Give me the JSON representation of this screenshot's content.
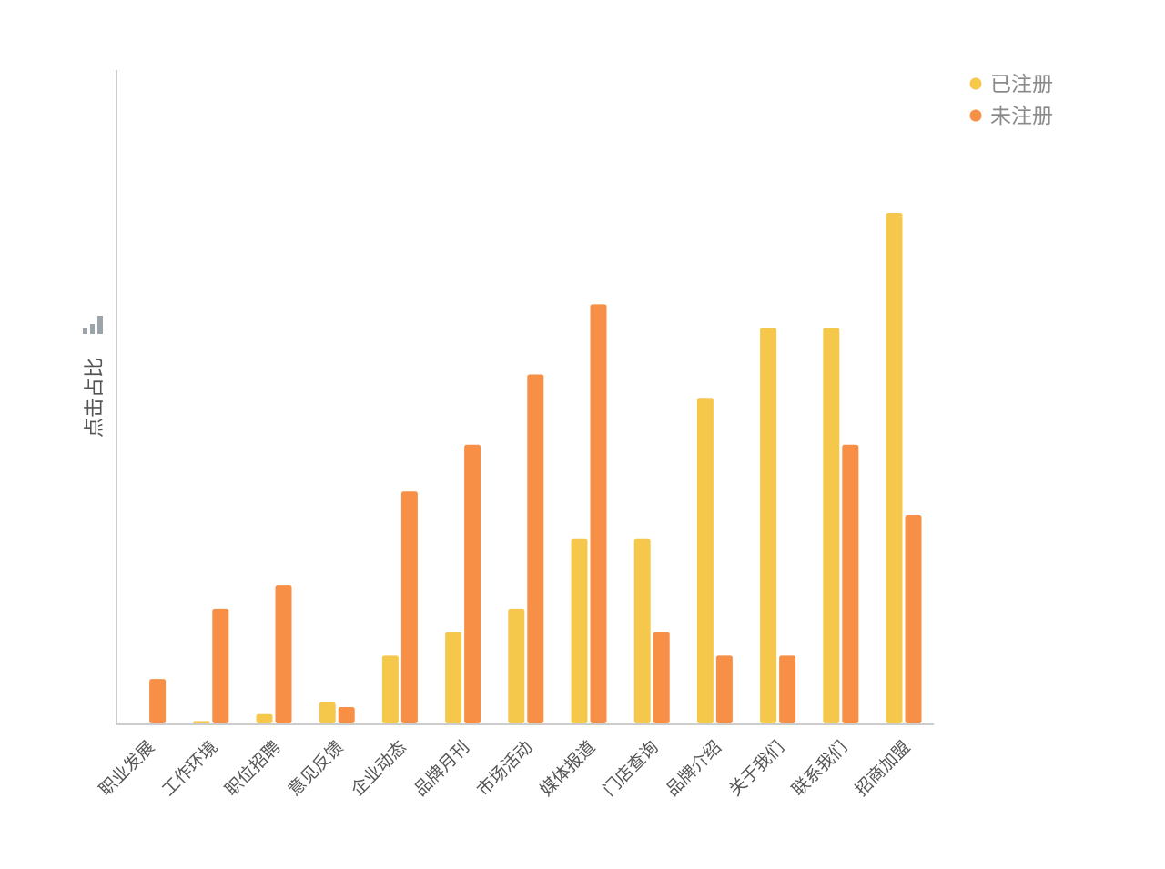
{
  "chart_data": {
    "type": "bar",
    "ylabel": "点击占比",
    "categories": [
      "职业发展",
      "工作环境",
      "职位招聘",
      "意见反馈",
      "企业动态",
      "品牌月刊",
      "市场活动",
      "媒体报道",
      "门店查询",
      "品牌介绍",
      "关于我们",
      "联系我们",
      "招商加盟"
    ],
    "series": [
      {
        "name": "已注册",
        "color": "#F5C84C",
        "values": [
          0,
          0.1,
          0.4,
          0.9,
          2.9,
          3.9,
          4.9,
          7.9,
          7.9,
          13.9,
          16.9,
          16.9,
          21.8
        ]
      },
      {
        "name": "未注册",
        "color": "#F78F47",
        "values": [
          1.9,
          4.9,
          5.9,
          0.7,
          9.9,
          11.9,
          14.9,
          17.9,
          3.9,
          2.9,
          2.9,
          11.9,
          8.9
        ]
      }
    ],
    "ylim": [
      0,
      27.9
    ],
    "grid": false,
    "y_tick_labels_shown": false,
    "legend": "top-right",
    "label_color": "#8A8A8A",
    "axis_color": "#CCCCCC"
  }
}
